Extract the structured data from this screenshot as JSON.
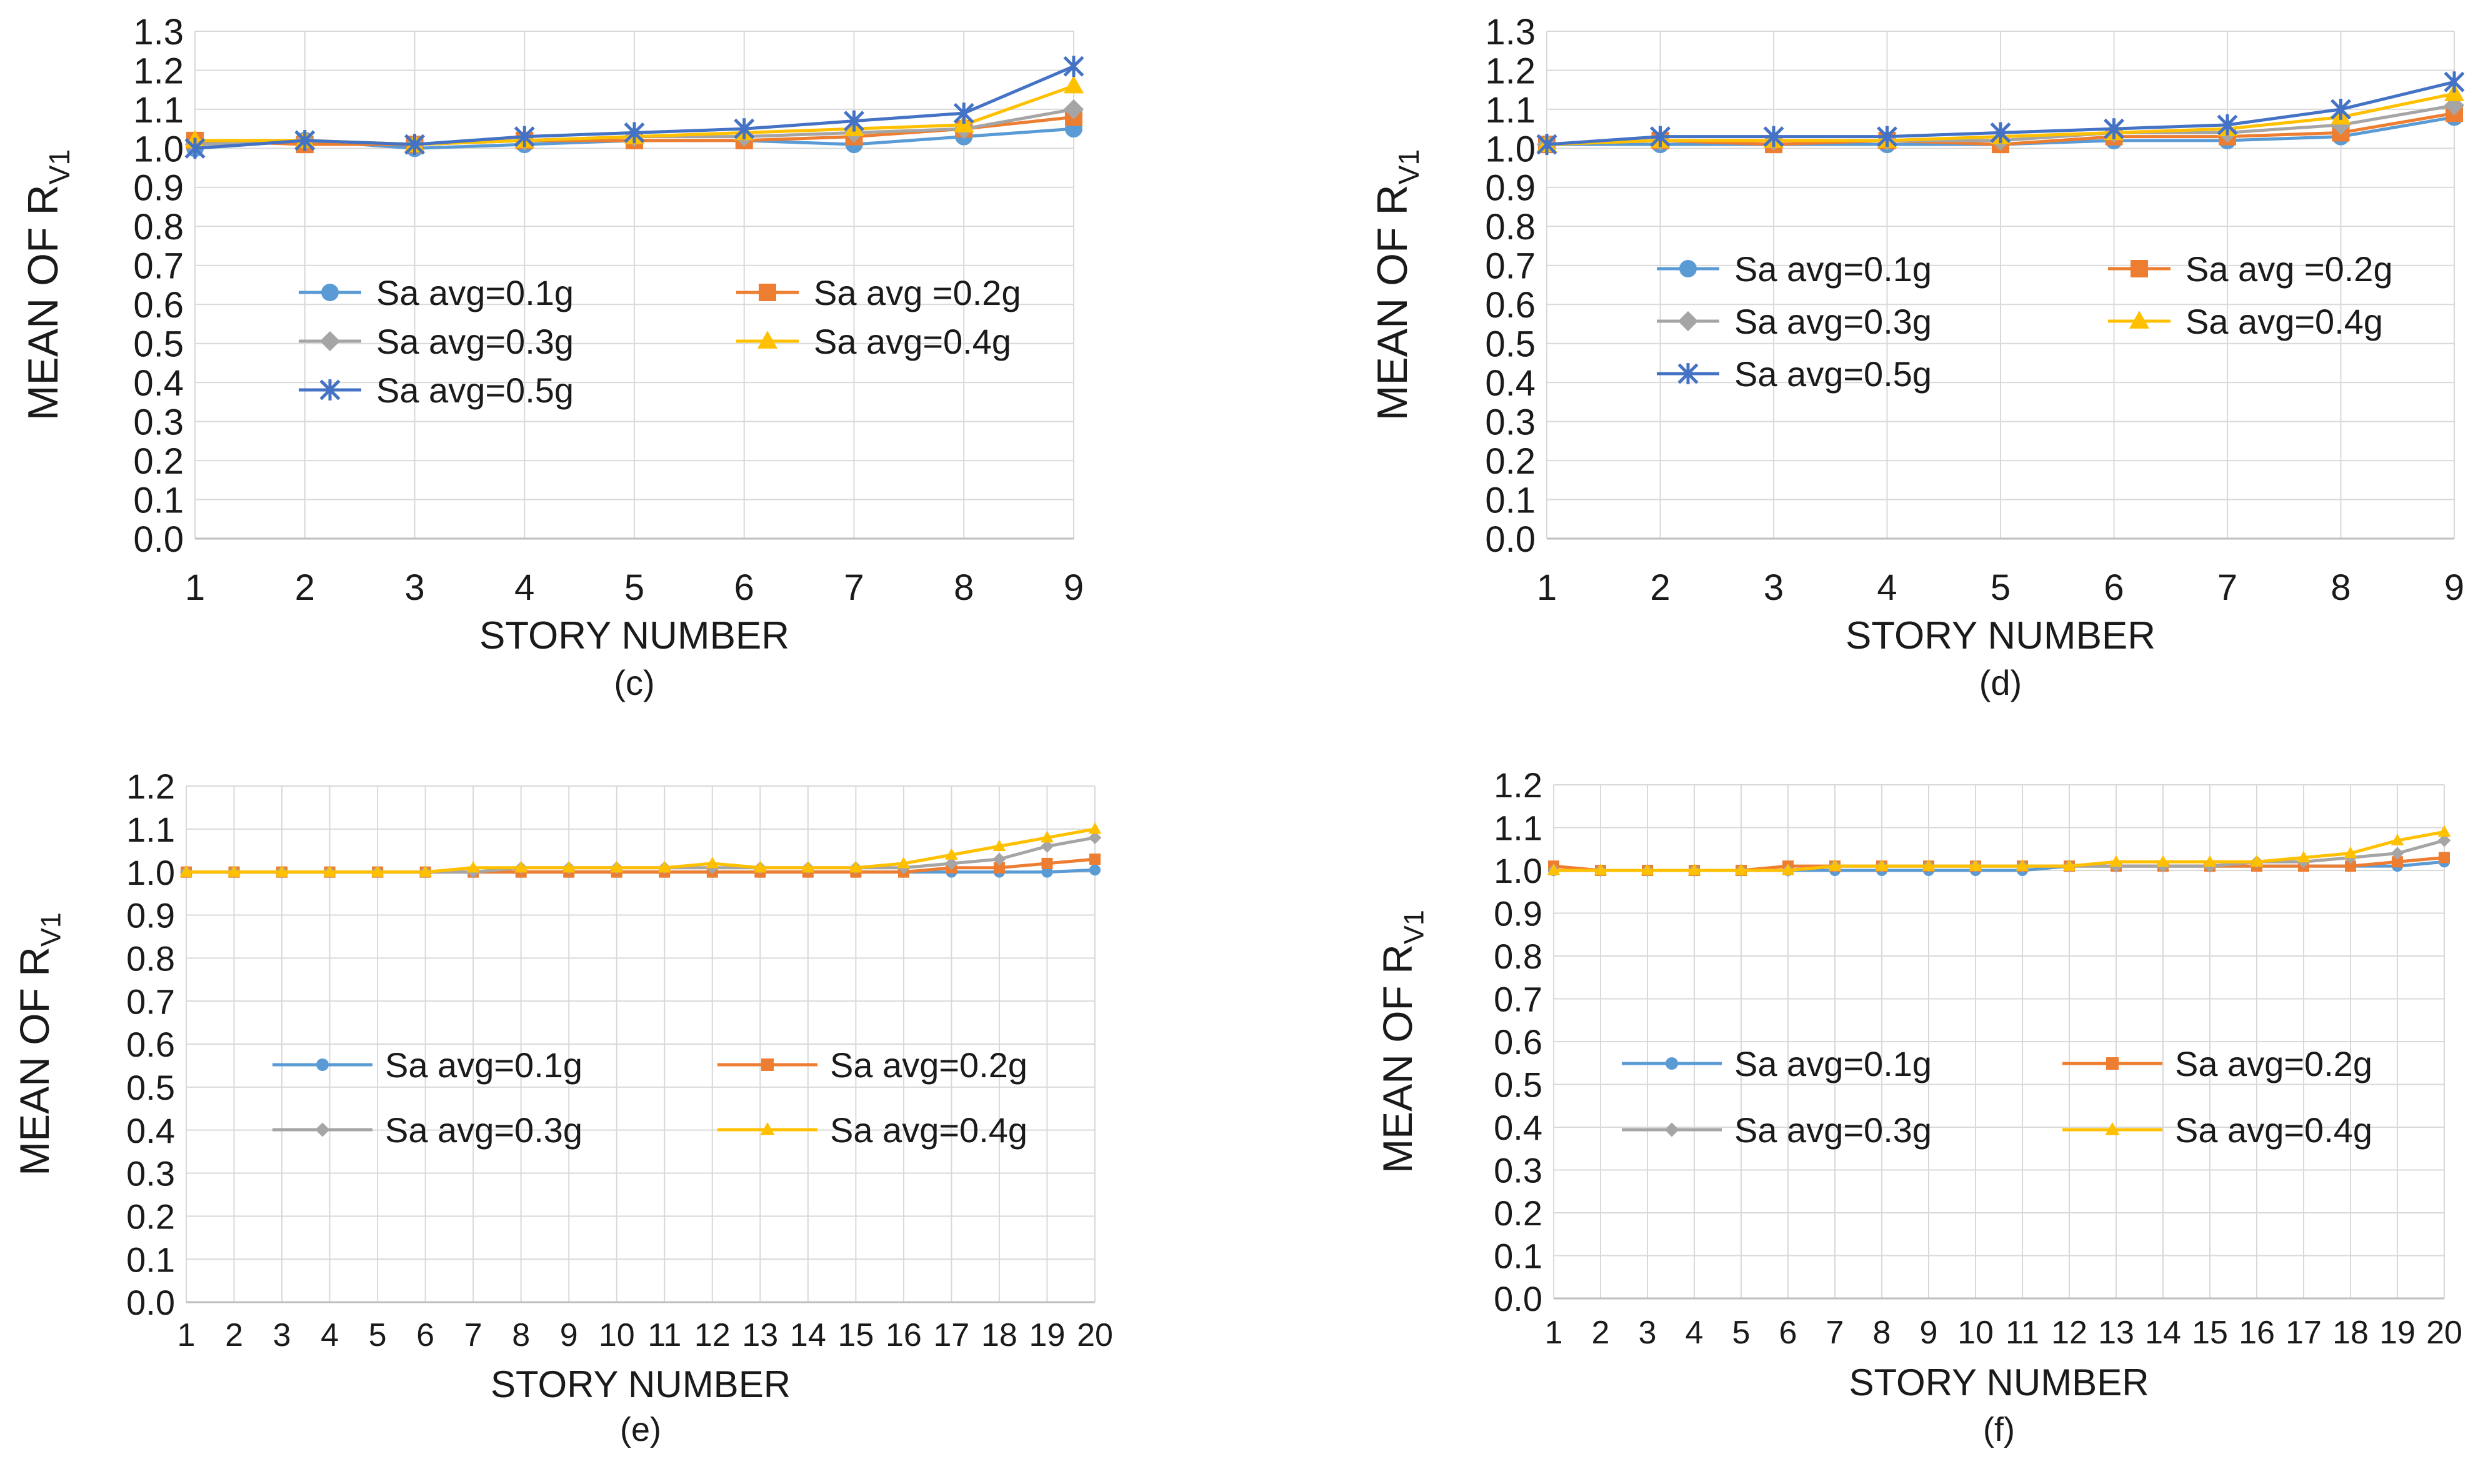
{
  "chart_data": [
    {
      "id": "c",
      "type": "line",
      "caption": "(c)",
      "xlabel": "STORY NUMBER",
      "ylabel_main": "MEAN OF  R",
      "ylabel_sub": "V1",
      "ylim": [
        0.0,
        1.3
      ],
      "ytick_step": 0.1,
      "categories": [
        "1",
        "2",
        "3",
        "4",
        "5",
        "6",
        "7",
        "8",
        "9"
      ],
      "series": [
        {
          "name": "Sa avg=0.1g",
          "color": "#5B9BD5",
          "marker": "circle",
          "values": [
            1.0,
            1.02,
            1.0,
            1.01,
            1.02,
            1.02,
            1.01,
            1.03,
            1.05
          ]
        },
        {
          "name": "Sa avg =0.2g",
          "color": "#ED7D31",
          "marker": "square",
          "values": [
            1.02,
            1.01,
            1.01,
            1.02,
            1.02,
            1.02,
            1.03,
            1.05,
            1.08
          ]
        },
        {
          "name": "Sa avg=0.3g",
          "color": "#A5A5A5",
          "marker": "diamond",
          "values": [
            1.01,
            1.02,
            1.01,
            1.02,
            1.03,
            1.03,
            1.04,
            1.05,
            1.1
          ]
        },
        {
          "name": "Sa avg=0.4g",
          "color": "#FFC000",
          "marker": "triangle",
          "values": [
            1.02,
            1.02,
            1.01,
            1.02,
            1.03,
            1.04,
            1.05,
            1.06,
            1.16
          ]
        },
        {
          "name": "Sa avg=0.5g",
          "color": "#4472C4",
          "marker": "star",
          "values": [
            1.0,
            1.02,
            1.01,
            1.03,
            1.04,
            1.05,
            1.07,
            1.09,
            1.21
          ]
        }
      ],
      "legend": {
        "columns": 2,
        "order": [
          0,
          1,
          2,
          3,
          4
        ]
      }
    },
    {
      "id": "d",
      "type": "line",
      "caption": "(d)",
      "xlabel": "STORY NUMBER",
      "ylabel_main": "MEAN OF R",
      "ylabel_sub": "V1",
      "ylim": [
        0.0,
        1.3
      ],
      "ytick_step": 0.1,
      "categories": [
        "1",
        "2",
        "3",
        "4",
        "5",
        "6",
        "7",
        "8",
        "9"
      ],
      "series": [
        {
          "name": "Sa avg=0.1g",
          "color": "#5B9BD5",
          "marker": "circle",
          "values": [
            1.01,
            1.01,
            1.01,
            1.01,
            1.01,
            1.02,
            1.02,
            1.03,
            1.08
          ]
        },
        {
          "name": "Sa avg =0.2g",
          "color": "#ED7D31",
          "marker": "square",
          "values": [
            1.01,
            1.02,
            1.01,
            1.02,
            1.01,
            1.03,
            1.03,
            1.04,
            1.09
          ]
        },
        {
          "name": "Sa avg=0.3g",
          "color": "#A5A5A5",
          "marker": "diamond",
          "values": [
            1.01,
            1.02,
            1.02,
            1.02,
            1.02,
            1.04,
            1.04,
            1.06,
            1.11
          ]
        },
        {
          "name": "Sa avg=0.4g",
          "color": "#FFC000",
          "marker": "triangle",
          "values": [
            1.01,
            1.02,
            1.02,
            1.02,
            1.03,
            1.04,
            1.05,
            1.08,
            1.14
          ]
        },
        {
          "name": "Sa avg=0.5g",
          "color": "#4472C4",
          "marker": "star",
          "values": [
            1.01,
            1.03,
            1.03,
            1.03,
            1.04,
            1.05,
            1.06,
            1.1,
            1.17
          ]
        }
      ],
      "legend": {
        "columns": 2,
        "order": [
          0,
          1,
          2,
          3,
          4
        ]
      }
    },
    {
      "id": "e",
      "type": "line",
      "caption": "(e)",
      "xlabel": "STORY NUMBER",
      "ylabel_main": "MEAN OF  R",
      "ylabel_sub": "V1",
      "ylim": [
        0.0,
        1.2
      ],
      "ytick_step": 0.1,
      "categories": [
        "1",
        "2",
        "3",
        "4",
        "5",
        "6",
        "7",
        "8",
        "9",
        "10",
        "11",
        "12",
        "13",
        "14",
        "15",
        "16",
        "17",
        "18",
        "19",
        "20"
      ],
      "series": [
        {
          "name": "Sa avg=0.1g",
          "color": "#5B9BD5",
          "marker": "circle",
          "values": [
            1.0,
            1.0,
            1.0,
            1.0,
            1.0,
            1.0,
            1.0,
            1.0,
            1.0,
            1.0,
            1.0,
            1.0,
            1.0,
            1.0,
            1.0,
            1.0,
            1.0,
            1.0,
            1.0,
            1.005
          ]
        },
        {
          "name": "Sa avg=0.2g",
          "color": "#ED7D31",
          "marker": "square",
          "values": [
            1.0,
            1.0,
            1.0,
            1.0,
            1.0,
            1.0,
            1.0,
            1.0,
            1.0,
            1.0,
            1.0,
            1.0,
            1.0,
            1.0,
            1.0,
            1.0,
            1.01,
            1.01,
            1.02,
            1.03
          ]
        },
        {
          "name": "Sa avg=0.3g",
          "color": "#A5A5A5",
          "marker": "diamond",
          "values": [
            1.0,
            1.0,
            1.0,
            1.0,
            1.0,
            1.0,
            1.0,
            1.01,
            1.01,
            1.01,
            1.01,
            1.01,
            1.01,
            1.01,
            1.01,
            1.01,
            1.02,
            1.03,
            1.06,
            1.08
          ]
        },
        {
          "name": "Sa avg=0.4g",
          "color": "#FFC000",
          "marker": "triangle",
          "values": [
            1.0,
            1.0,
            1.0,
            1.0,
            1.0,
            1.0,
            1.01,
            1.01,
            1.01,
            1.01,
            1.01,
            1.02,
            1.01,
            1.01,
            1.01,
            1.02,
            1.04,
            1.06,
            1.08,
            1.1
          ]
        }
      ],
      "legend": {
        "columns": 2,
        "order": [
          0,
          1,
          2,
          3
        ]
      }
    },
    {
      "id": "f",
      "type": "line",
      "caption": "(f)",
      "xlabel": "STORY NUMBER",
      "ylabel_main": "MEAN OF  R",
      "ylabel_sub": "V1",
      "ylim": [
        0.0,
        1.2
      ],
      "ytick_step": 0.1,
      "categories": [
        "1",
        "2",
        "3",
        "4",
        "5",
        "6",
        "7",
        "8",
        "9",
        "10",
        "11",
        "12",
        "13",
        "14",
        "15",
        "16",
        "17",
        "18",
        "19",
        "20"
      ],
      "series": [
        {
          "name": "Sa avg=0.1g",
          "color": "#5B9BD5",
          "marker": "circle",
          "values": [
            1.0,
            1.0,
            1.0,
            1.0,
            1.0,
            1.0,
            1.0,
            1.0,
            1.0,
            1.0,
            1.0,
            1.01,
            1.01,
            1.01,
            1.01,
            1.01,
            1.01,
            1.01,
            1.01,
            1.02
          ]
        },
        {
          "name": "Sa avg=0.2g",
          "color": "#ED7D31",
          "marker": "square",
          "values": [
            1.01,
            1.0,
            1.0,
            1.0,
            1.0,
            1.01,
            1.01,
            1.01,
            1.01,
            1.01,
            1.01,
            1.01,
            1.01,
            1.01,
            1.01,
            1.01,
            1.01,
            1.01,
            1.02,
            1.03
          ]
        },
        {
          "name": "Sa avg=0.3g",
          "color": "#A5A5A5",
          "marker": "diamond",
          "values": [
            1.0,
            1.0,
            1.0,
            1.0,
            1.0,
            1.0,
            1.01,
            1.01,
            1.01,
            1.01,
            1.01,
            1.01,
            1.01,
            1.01,
            1.01,
            1.02,
            1.02,
            1.03,
            1.04,
            1.07
          ]
        },
        {
          "name": "Sa avg=0.4g",
          "color": "#FFC000",
          "marker": "triangle",
          "values": [
            1.0,
            1.0,
            1.0,
            1.0,
            1.0,
            1.0,
            1.01,
            1.01,
            1.01,
            1.01,
            1.01,
            1.01,
            1.02,
            1.02,
            1.02,
            1.02,
            1.03,
            1.04,
            1.07,
            1.09
          ]
        }
      ],
      "legend": {
        "columns": 2,
        "order": [
          0,
          1,
          2,
          3
        ]
      }
    }
  ]
}
